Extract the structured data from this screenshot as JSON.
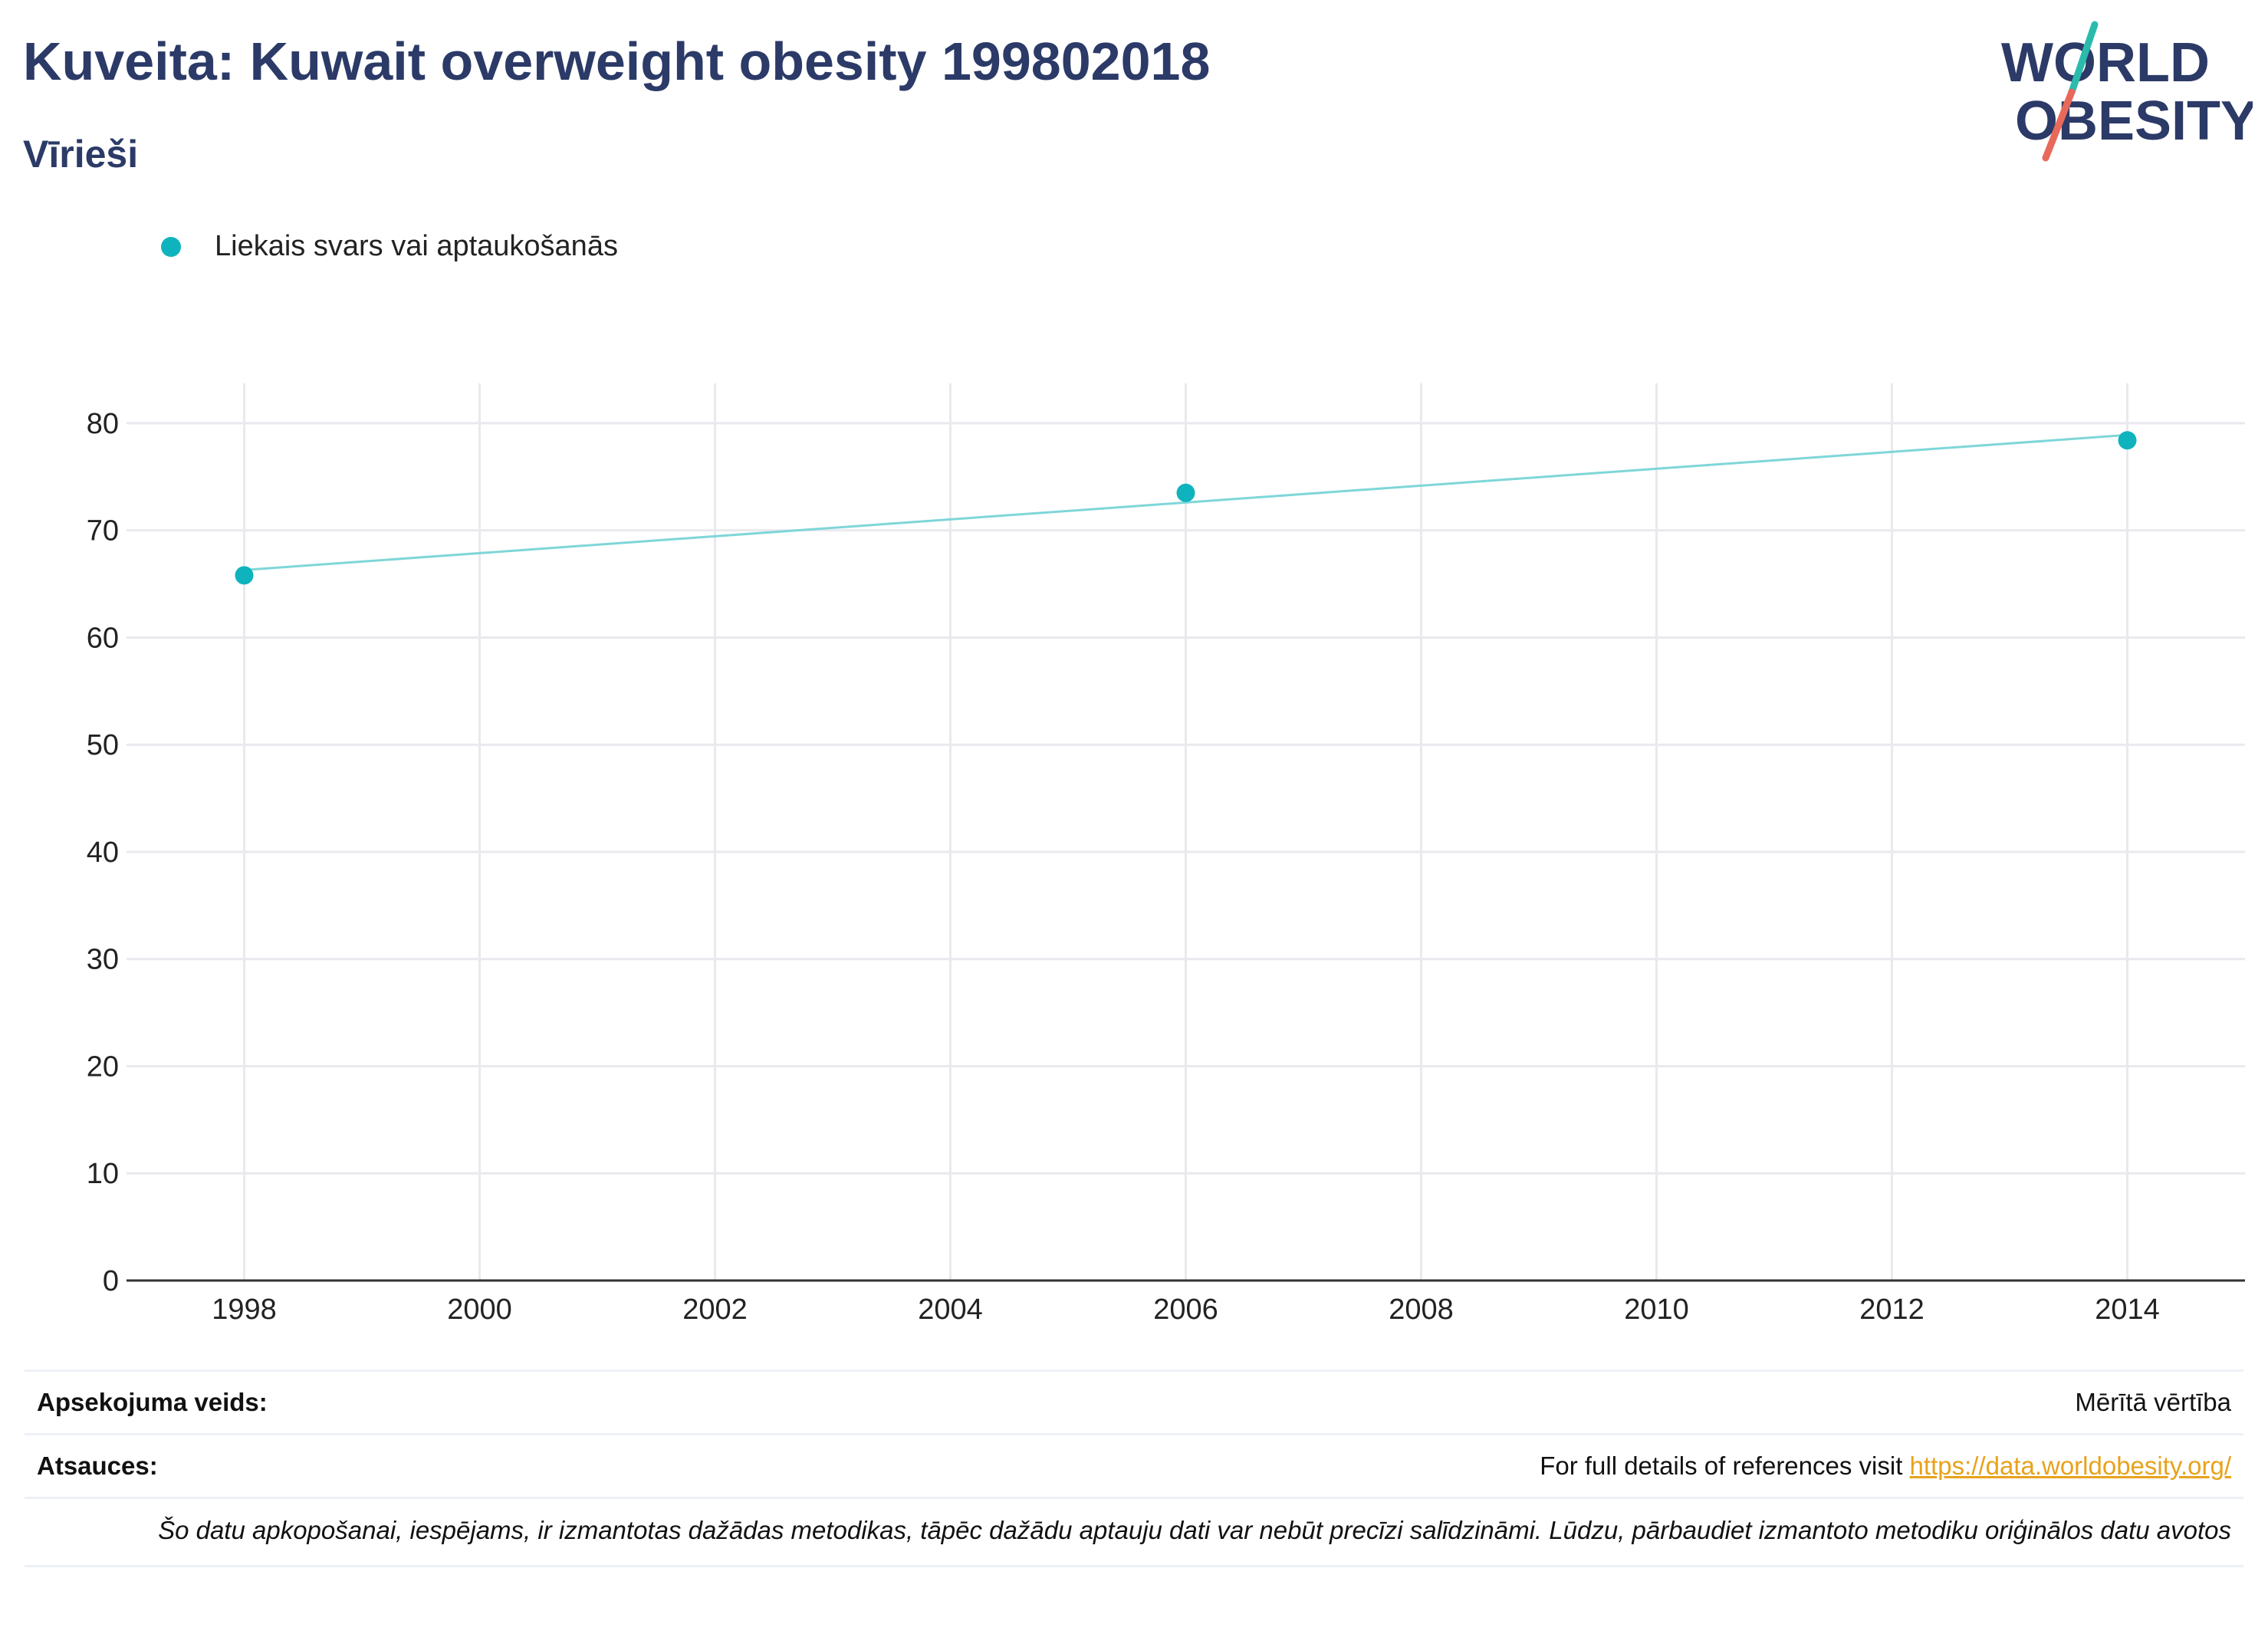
{
  "header": {
    "title": "Kuveita: Kuwait overweight obesity 199802018",
    "subtitle": "Vīrieši"
  },
  "logo": {
    "line1": "WORLD",
    "line2": "OBESITY",
    "colors": {
      "text": "#2b3a67",
      "slash_top": "#2bbbad",
      "slash_bottom": "#e8695a"
    }
  },
  "colors": {
    "series": "#0fb3bd",
    "trend": "#7fd6d8",
    "grid": "#e9e9ee",
    "axis": "#333333",
    "text_dark": "#2b3a67"
  },
  "chart_data": {
    "type": "scatter",
    "title": "",
    "xlabel": "",
    "ylabel": "",
    "xlim": [
      1997.0,
      2015.0
    ],
    "ylim": [
      0,
      83
    ],
    "x_ticks": [
      1998,
      2000,
      2002,
      2004,
      2006,
      2008,
      2010,
      2012,
      2014
    ],
    "y_ticks": [
      0,
      10,
      20,
      30,
      40,
      50,
      60,
      70,
      80
    ],
    "grid": true,
    "legend_position": "top-left",
    "series": [
      {
        "name": "Liekais svars vai aptaukošanās",
        "x": [
          1998,
          2006,
          2014
        ],
        "y": [
          65.8,
          73.5,
          78.4
        ]
      }
    ],
    "trendline": {
      "x": [
        1998,
        2014
      ],
      "y": [
        66.3,
        78.9
      ]
    }
  },
  "footer": {
    "survey_type_label": "Apsekojuma veids:",
    "survey_type_value": "Mērītā vērtība",
    "references_label": "Atsauces:",
    "references_text": "For full details of references visit",
    "references_link": "https://data.worldobesity.org/",
    "note": "Šo datu apkopošanai, iespējams, ir izmantotas dažādas metodikas, tāpēc dažādu aptauju dati var nebūt precīzi salīdzināmi. Lūdzu, pārbaudiet izmantoto metodiku oriģinālos datu avotos"
  }
}
